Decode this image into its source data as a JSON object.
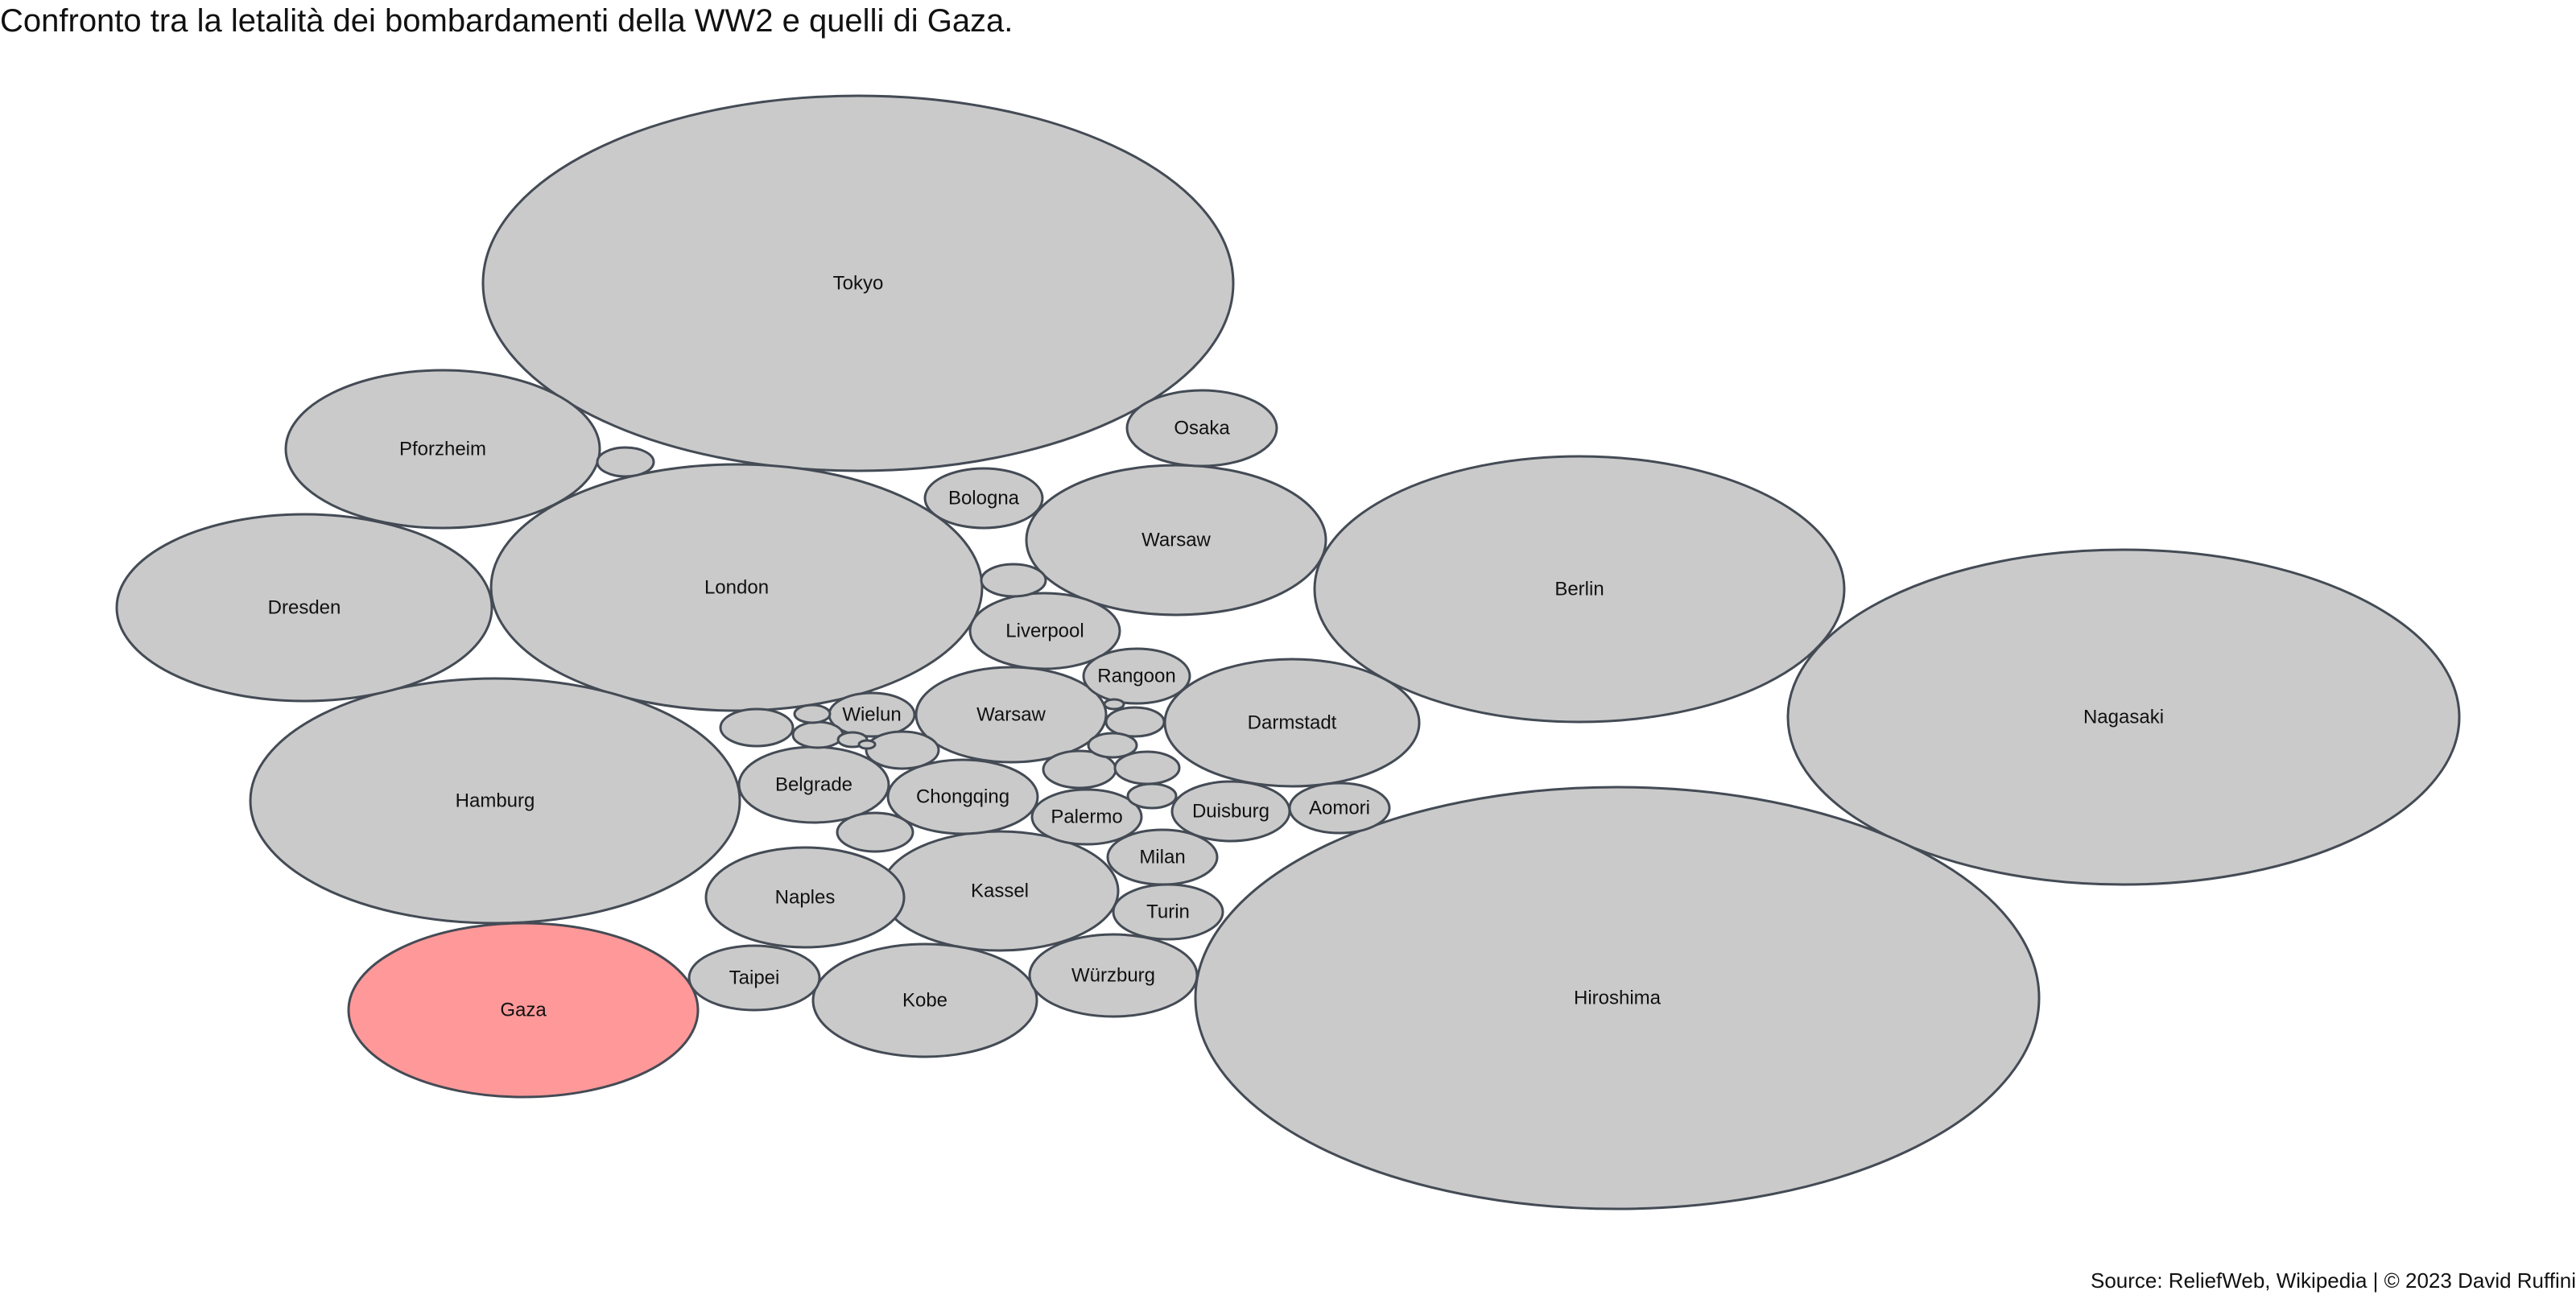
{
  "chart_data": {
    "type": "bubble",
    "title": "Confronto tra la letalità dei bombardamenti della WW2 e quelli di Gaza.",
    "caption": "Source: ReliefWeb, Wikipedia | © 2023 David Ruffini",
    "colors": {
      "default": "#cacaca",
      "highlight": "#ff9999",
      "stroke": "#444b55"
    },
    "bubbles": [
      {
        "label": "Tokyo",
        "value": 100000
      },
      {
        "label": "Nagasaki",
        "value": 80000
      },
      {
        "label": "Hiroshima",
        "value": 140000
      },
      {
        "label": "Berlin",
        "value": 50000
      },
      {
        "label": "London",
        "value": 43000
      },
      {
        "label": "Hamburg",
        "value": 42600
      },
      {
        "label": "Dresden",
        "value": 25000
      },
      {
        "label": "Pforzheim",
        "value": 17600
      },
      {
        "label": "Gaza",
        "value": 10000,
        "highlight": true
      },
      {
        "label": "Warsaw",
        "value": 7000
      },
      {
        "label": "Darmstadt",
        "value": 12000
      },
      {
        "label": "Kassel",
        "value": 10000
      },
      {
        "label": "Naples",
        "value": 6000
      },
      {
        "label": "Kobe",
        "value": 8800
      },
      {
        "label": "Chongqing",
        "value": 4400
      },
      {
        "label": "Warsaw",
        "value": 6000
      },
      {
        "label": "Würzburg",
        "value": 5000
      },
      {
        "label": "Liverpool",
        "value": 4000
      },
      {
        "label": "Belgrade",
        "value": 4000
      },
      {
        "label": "Osaka",
        "value": 3500
      },
      {
        "label": "Bologna",
        "value": 2500
      },
      {
        "label": "Taipei",
        "value": 3000
      },
      {
        "label": "Palermo",
        "value": 2000
      },
      {
        "label": "Duisburg",
        "value": 2500
      },
      {
        "label": "Rangoon",
        "value": 2000
      },
      {
        "label": "Milan",
        "value": 2000
      },
      {
        "label": "Turin",
        "value": 2000
      },
      {
        "label": "Aomori",
        "value": 1767
      },
      {
        "label": "Wielun",
        "value": 1200
      },
      {
        "label": "",
        "value": 1000
      },
      {
        "label": "",
        "value": 800
      },
      {
        "label": "",
        "value": 700
      },
      {
        "label": "",
        "value": 800
      },
      {
        "label": "",
        "value": 600
      },
      {
        "label": "",
        "value": 500
      },
      {
        "label": "",
        "value": 400
      },
      {
        "label": "",
        "value": 400
      },
      {
        "label": "",
        "value": 300
      },
      {
        "label": "",
        "value": 300
      },
      {
        "label": "",
        "value": 200
      },
      {
        "label": "",
        "value": 150
      },
      {
        "label": "",
        "value": 150
      },
      {
        "label": "",
        "value": 100
      },
      {
        "label": "",
        "value": 100
      }
    ]
  }
}
